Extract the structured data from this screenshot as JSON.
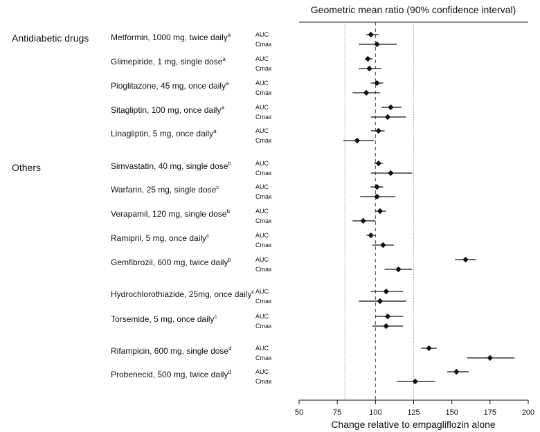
{
  "chart_data": {
    "type": "forest",
    "title": "Geometric mean ratio (90% confidence interval)",
    "xlabel": "Change relative to empagliflozin alone",
    "xlim": [
      50,
      200
    ],
    "xticks": [
      "50",
      "75",
      "100",
      "125",
      "150",
      "175",
      "200"
    ],
    "reference_lines": [
      80,
      100,
      125
    ],
    "groups": [
      {
        "label": "Antidiabetic drugs",
        "drugs": [
          {
            "name": "Metformin, 1000 mg, twice daily",
            "sup": "a",
            "auc": {
              "label": "AUC",
              "value": 97,
              "lo": 94,
              "hi": 102
            },
            "cmax": {
              "label": "Cmax",
              "value": 101,
              "lo": 89,
              "hi": 114
            }
          },
          {
            "name": "Glimepiride, 1 mg, single dose",
            "sup": "a",
            "auc": {
              "label": "AUC",
              "value": 95,
              "lo": 93,
              "hi": 98
            },
            "cmax": {
              "label": "Cmax",
              "value": 96,
              "lo": 89,
              "hi": 104
            }
          },
          {
            "name": "Pioglitazone, 45 mg, once daily",
            "sup": "a",
            "auc": {
              "label": "AUC",
              "value": 101,
              "lo": 97,
              "hi": 105
            },
            "cmax": {
              "label": "Cmax",
              "value": 94,
              "lo": 85,
              "hi": 103
            }
          },
          {
            "name": "Sitagliptin, 100 mg, once daily",
            "sup": "a",
            "auc": {
              "label": "AUC",
              "value": 110,
              "lo": 104,
              "hi": 117
            },
            "cmax": {
              "label": "Cmax",
              "value": 108,
              "lo": 97,
              "hi": 120
            }
          },
          {
            "name": "Linagliptin, 5 mg, once daily",
            "sup": "a",
            "auc": {
              "label": "AUC",
              "value": 102,
              "lo": 97,
              "hi": 106
            },
            "cmax": {
              "label": "Cmax",
              "value": 88,
              "lo": 79,
              "hi": 99
            }
          }
        ]
      },
      {
        "label": "Others",
        "drugs": [
          {
            "name": "Simvastatin, 40 mg, single dose",
            "sup": "b",
            "auc": {
              "label": "AUC",
              "value": 102,
              "lo": 99,
              "hi": 105
            },
            "cmax": {
              "label": "Cmax",
              "value": 110,
              "lo": 97,
              "hi": 124
            }
          },
          {
            "name": "Warfarin, 25 mg, single dose",
            "sup": "c",
            "auc": {
              "label": "AUC",
              "value": 101,
              "lo": 97,
              "hi": 105
            },
            "cmax": {
              "label": "Cmax",
              "value": 101,
              "lo": 90,
              "hi": 113
            }
          },
          {
            "name": "Verapamil, 120 mg, single dose",
            "sup": "b",
            "auc": {
              "label": "AUC",
              "value": 103,
              "lo": 100,
              "hi": 107
            },
            "cmax": {
              "label": "Cmax",
              "value": 92,
              "lo": 85,
              "hi": 100
            }
          },
          {
            "name": "Ramipril, 5 mg, once daily",
            "sup": "c",
            "auc": {
              "label": "AUC",
              "value": 97,
              "lo": 94,
              "hi": 100
            },
            "cmax": {
              "label": "Cmax",
              "value": 105,
              "lo": 98,
              "hi": 112
            }
          },
          {
            "name": "Gemfibrozil, 600 mg, twice daily",
            "sup": "b",
            "auc": {
              "label": "AUC",
              "value": 159,
              "lo": 152,
              "hi": 166
            },
            "cmax": {
              "label": "Cmax",
              "value": 115,
              "lo": 106,
              "hi": 124
            }
          },
          {
            "name": "Hydrochlorothiazide, 25mg, once daily",
            "sup": "c",
            "auc": {
              "label": "AUC",
              "value": 107,
              "lo": 97,
              "hi": 118
            },
            "cmax": {
              "label": "Cmax",
              "value": 103,
              "lo": 89,
              "hi": 120
            }
          },
          {
            "name": "Torsemide, 5 mg, once daily",
            "sup": "c",
            "auc": {
              "label": "AUC",
              "value": 108,
              "lo": 100,
              "hi": 118
            },
            "cmax": {
              "label": "Cmax",
              "value": 107,
              "lo": 98,
              "hi": 118
            }
          },
          {
            "name": "Rifampicin, 600 mg, single dose",
            "sup": "d",
            "auc": {
              "label": "AUC",
              "value": 135,
              "lo": 130,
              "hi": 140
            },
            "cmax": {
              "label": "Cmax",
              "value": 175,
              "lo": 160,
              "hi": 191
            }
          },
          {
            "name": "Probenecid, 500 mg, twice daily",
            "sup": "d",
            "auc": {
              "label": "AUC",
              "value": 153,
              "lo": 147,
              "hi": 161
            },
            "cmax": {
              "label": "Cmax",
              "value": 126,
              "lo": 114,
              "hi": 139
            }
          }
        ]
      }
    ]
  }
}
